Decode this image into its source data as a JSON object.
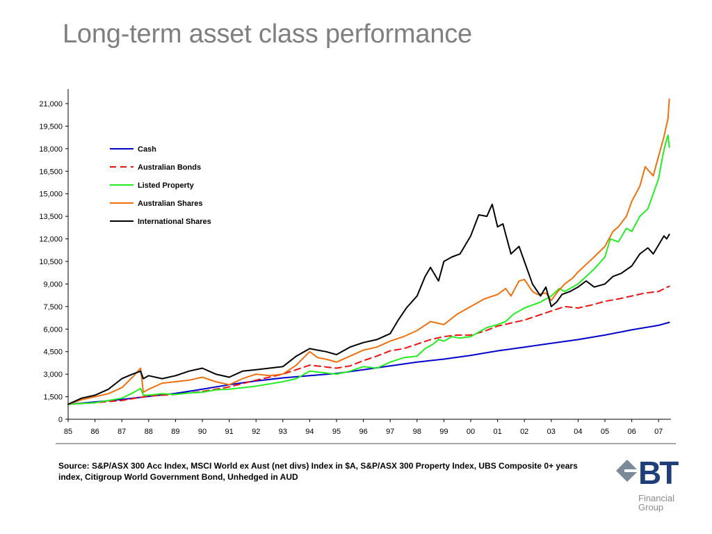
{
  "page": {
    "title": "Long-term asset class performance",
    "source": "Source: S&P/ASX 300 Acc Index, MSCI World ex Aust (net divs) Index in $A, S&P/ASX 300 Property Index, UBS Composite 0+ years index, Citigroup World Government Bond, Unhedged in AUD"
  },
  "logo": {
    "mark": "BT",
    "sub_line1": "Financial",
    "sub_line2": "Group",
    "brand_color": "#1f3f7a",
    "diamond_color": "#7a8a99"
  },
  "chart_data": {
    "type": "line",
    "title": "",
    "xlabel": "",
    "ylabel": "",
    "x_ticks": [
      "85",
      "86",
      "87",
      "88",
      "89",
      "90",
      "91",
      "92",
      "93",
      "94",
      "95",
      "96",
      "97",
      "98",
      "99",
      "00",
      "01",
      "02",
      "03",
      "04",
      "05",
      "06",
      "07"
    ],
    "x_range": [
      1985.0,
      2007.5
    ],
    "y_ticks": [
      "0",
      "1,500",
      "3,000",
      "4,500",
      "6,000",
      "7,500",
      "9,000",
      "10,500",
      "12,000",
      "13,500",
      "15,000",
      "16,500",
      "18,000",
      "19,500",
      "21,000"
    ],
    "ylim": [
      0,
      21000
    ],
    "grid": false,
    "legend_position": "top-left",
    "series": [
      {
        "name": "Cash",
        "color": "#0000cc",
        "dash": "solid",
        "x": [
          1985.0,
          1986.0,
          1987.0,
          1988.0,
          1989.0,
          1990.0,
          1991.0,
          1992.0,
          1993.0,
          1994.0,
          1995.0,
          1996.0,
          1997.0,
          1998.0,
          1999.0,
          2000.0,
          2001.0,
          2002.0,
          2003.0,
          2004.0,
          2005.0,
          2006.0,
          2007.0,
          2007.4
        ],
        "y": [
          1000,
          1150,
          1320,
          1520,
          1720,
          2000,
          2300,
          2550,
          2750,
          2900,
          3050,
          3300,
          3550,
          3800,
          4000,
          4250,
          4550,
          4800,
          5050,
          5300,
          5600,
          5950,
          6250,
          6450
        ]
      },
      {
        "name": "Australian Bonds",
        "color": "#ee1111",
        "dash": "dashed",
        "x": [
          1985.0,
          1986.0,
          1987.0,
          1988.0,
          1989.0,
          1990.0,
          1991.0,
          1992.0,
          1993.0,
          1993.5,
          1994.0,
          1994.5,
          1995.0,
          1995.5,
          1996.0,
          1996.5,
          1997.0,
          1997.5,
          1998.0,
          1998.5,
          1999.0,
          1999.5,
          2000.0,
          2000.5,
          2001.0,
          2001.5,
          2002.0,
          2002.5,
          2003.0,
          2003.5,
          2004.0,
          2004.5,
          2005.0,
          2005.5,
          2006.0,
          2006.5,
          2007.0,
          2007.4
        ],
        "y": [
          1000,
          1100,
          1250,
          1550,
          1650,
          1850,
          2150,
          2600,
          3000,
          3300,
          3600,
          3500,
          3400,
          3550,
          3900,
          4200,
          4550,
          4700,
          5000,
          5300,
          5500,
          5600,
          5600,
          5850,
          6200,
          6400,
          6600,
          6900,
          7200,
          7500,
          7400,
          7600,
          7850,
          8000,
          8200,
          8400,
          8500,
          8850
        ]
      },
      {
        "name": "Listed Property",
        "color": "#22ee22",
        "dash": "solid",
        "x": [
          1985.0,
          1985.5,
          1986.0,
          1986.5,
          1987.0,
          1987.4,
          1987.7,
          1987.8,
          1988.0,
          1988.5,
          1989.0,
          1989.5,
          1990.0,
          1990.5,
          1991.0,
          1991.5,
          1992.0,
          1992.5,
          1993.0,
          1993.5,
          1994.0,
          1994.5,
          1995.0,
          1995.5,
          1996.0,
          1996.5,
          1997.0,
          1997.5,
          1998.0,
          1998.3,
          1998.6,
          1998.8,
          1999.0,
          1999.3,
          1999.6,
          2000.0,
          2000.3,
          2000.6,
          2001.0,
          2001.3,
          2001.6,
          2002.0,
          2002.3,
          2002.6,
          2003.0,
          2003.3,
          2003.5,
          2003.8,
          2004.0,
          2004.3,
          2004.6,
          2005.0,
          2005.2,
          2005.5,
          2005.8,
          2006.0,
          2006.3,
          2006.6,
          2006.8,
          2007.0,
          2007.15,
          2007.25,
          2007.35,
          2007.4
        ],
        "y": [
          1000,
          1050,
          1100,
          1250,
          1400,
          1750,
          2050,
          1600,
          1600,
          1700,
          1650,
          1750,
          1800,
          1950,
          2000,
          2100,
          2200,
          2350,
          2500,
          2700,
          3200,
          3100,
          3000,
          3200,
          3500,
          3400,
          3800,
          4100,
          4200,
          4700,
          5000,
          5300,
          5200,
          5500,
          5400,
          5500,
          5800,
          6100,
          6300,
          6500,
          7000,
          7400,
          7600,
          7800,
          8200,
          8700,
          8500,
          8800,
          9000,
          9500,
          10000,
          10800,
          12000,
          11800,
          12700,
          12500,
          13500,
          14000,
          15000,
          16000,
          17500,
          18300,
          18900,
          18100
        ]
      },
      {
        "name": "Australian Shares",
        "color": "#f07010",
        "dash": "solid",
        "x": [
          1985.0,
          1985.5,
          1986.0,
          1986.5,
          1987.0,
          1987.4,
          1987.7,
          1987.8,
          1988.0,
          1988.5,
          1989.0,
          1989.5,
          1990.0,
          1990.5,
          1991.0,
          1991.5,
          1992.0,
          1992.5,
          1993.0,
          1993.5,
          1994.0,
          1994.3,
          1994.6,
          1995.0,
          1995.5,
          1996.0,
          1996.5,
          1997.0,
          1997.5,
          1998.0,
          1998.5,
          1999.0,
          1999.5,
          2000.0,
          2000.5,
          2001.0,
          2001.3,
          2001.5,
          2001.8,
          2002.0,
          2002.3,
          2002.5,
          2002.8,
          2003.0,
          2003.2,
          2003.5,
          2003.8,
          2004.0,
          2004.3,
          2004.6,
          2005.0,
          2005.3,
          2005.5,
          2005.8,
          2006.0,
          2006.3,
          2006.5,
          2006.8,
          2007.0,
          2007.2,
          2007.35,
          2007.4
        ],
        "y": [
          1000,
          1300,
          1500,
          1700,
          2100,
          2800,
          3400,
          1800,
          2000,
          2400,
          2500,
          2600,
          2800,
          2500,
          2300,
          2700,
          3000,
          2900,
          3000,
          3600,
          4500,
          4100,
          4000,
          3800,
          4200,
          4600,
          4800,
          5200,
          5500,
          5900,
          6500,
          6300,
          7000,
          7500,
          8000,
          8300,
          8700,
          8200,
          9200,
          9300,
          8500,
          8300,
          8400,
          7900,
          8400,
          9000,
          9400,
          9800,
          10300,
          10800,
          11500,
          12500,
          12800,
          13500,
          14500,
          15500,
          16800,
          16200,
          17500,
          18800,
          20000,
          21300
        ]
      },
      {
        "name": "International Shares",
        "color": "#000000",
        "dash": "solid",
        "x": [
          1985.0,
          1985.5,
          1986.0,
          1986.5,
          1987.0,
          1987.4,
          1987.7,
          1987.8,
          1988.0,
          1988.5,
          1989.0,
          1989.5,
          1990.0,
          1990.5,
          1991.0,
          1991.5,
          1992.0,
          1992.5,
          1993.0,
          1993.5,
          1994.0,
          1994.3,
          1994.6,
          1995.0,
          1995.5,
          1996.0,
          1996.5,
          1997.0,
          1997.3,
          1997.6,
          1998.0,
          1998.3,
          1998.5,
          1998.8,
          1999.0,
          1999.3,
          1999.6,
          2000.0,
          2000.3,
          2000.6,
          2000.8,
          2001.0,
          2001.2,
          2001.5,
          2001.8,
          2002.0,
          2002.3,
          2002.6,
          2002.8,
          2003.0,
          2003.2,
          2003.4,
          2003.7,
          2004.0,
          2004.3,
          2004.6,
          2005.0,
          2005.3,
          2005.6,
          2006.0,
          2006.3,
          2006.6,
          2006.8,
          2007.0,
          2007.2,
          2007.3,
          2007.4
        ],
        "y": [
          1000,
          1400,
          1600,
          2000,
          2700,
          3000,
          3200,
          2700,
          2900,
          2700,
          2900,
          3200,
          3400,
          3000,
          2800,
          3200,
          3300,
          3400,
          3500,
          4200,
          4700,
          4600,
          4500,
          4300,
          4800,
          5100,
          5300,
          5700,
          6600,
          7400,
          8200,
          9500,
          10100,
          9200,
          10500,
          10800,
          11000,
          12200,
          13600,
          13500,
          14300,
          12800,
          13000,
          11000,
          11500,
          10500,
          9000,
          8200,
          8800,
          7500,
          7800,
          8300,
          8500,
          8800,
          9200,
          8800,
          9000,
          9500,
          9700,
          10200,
          11000,
          11400,
          11000,
          11600,
          12200,
          12000,
          12300
        ]
      }
    ]
  }
}
